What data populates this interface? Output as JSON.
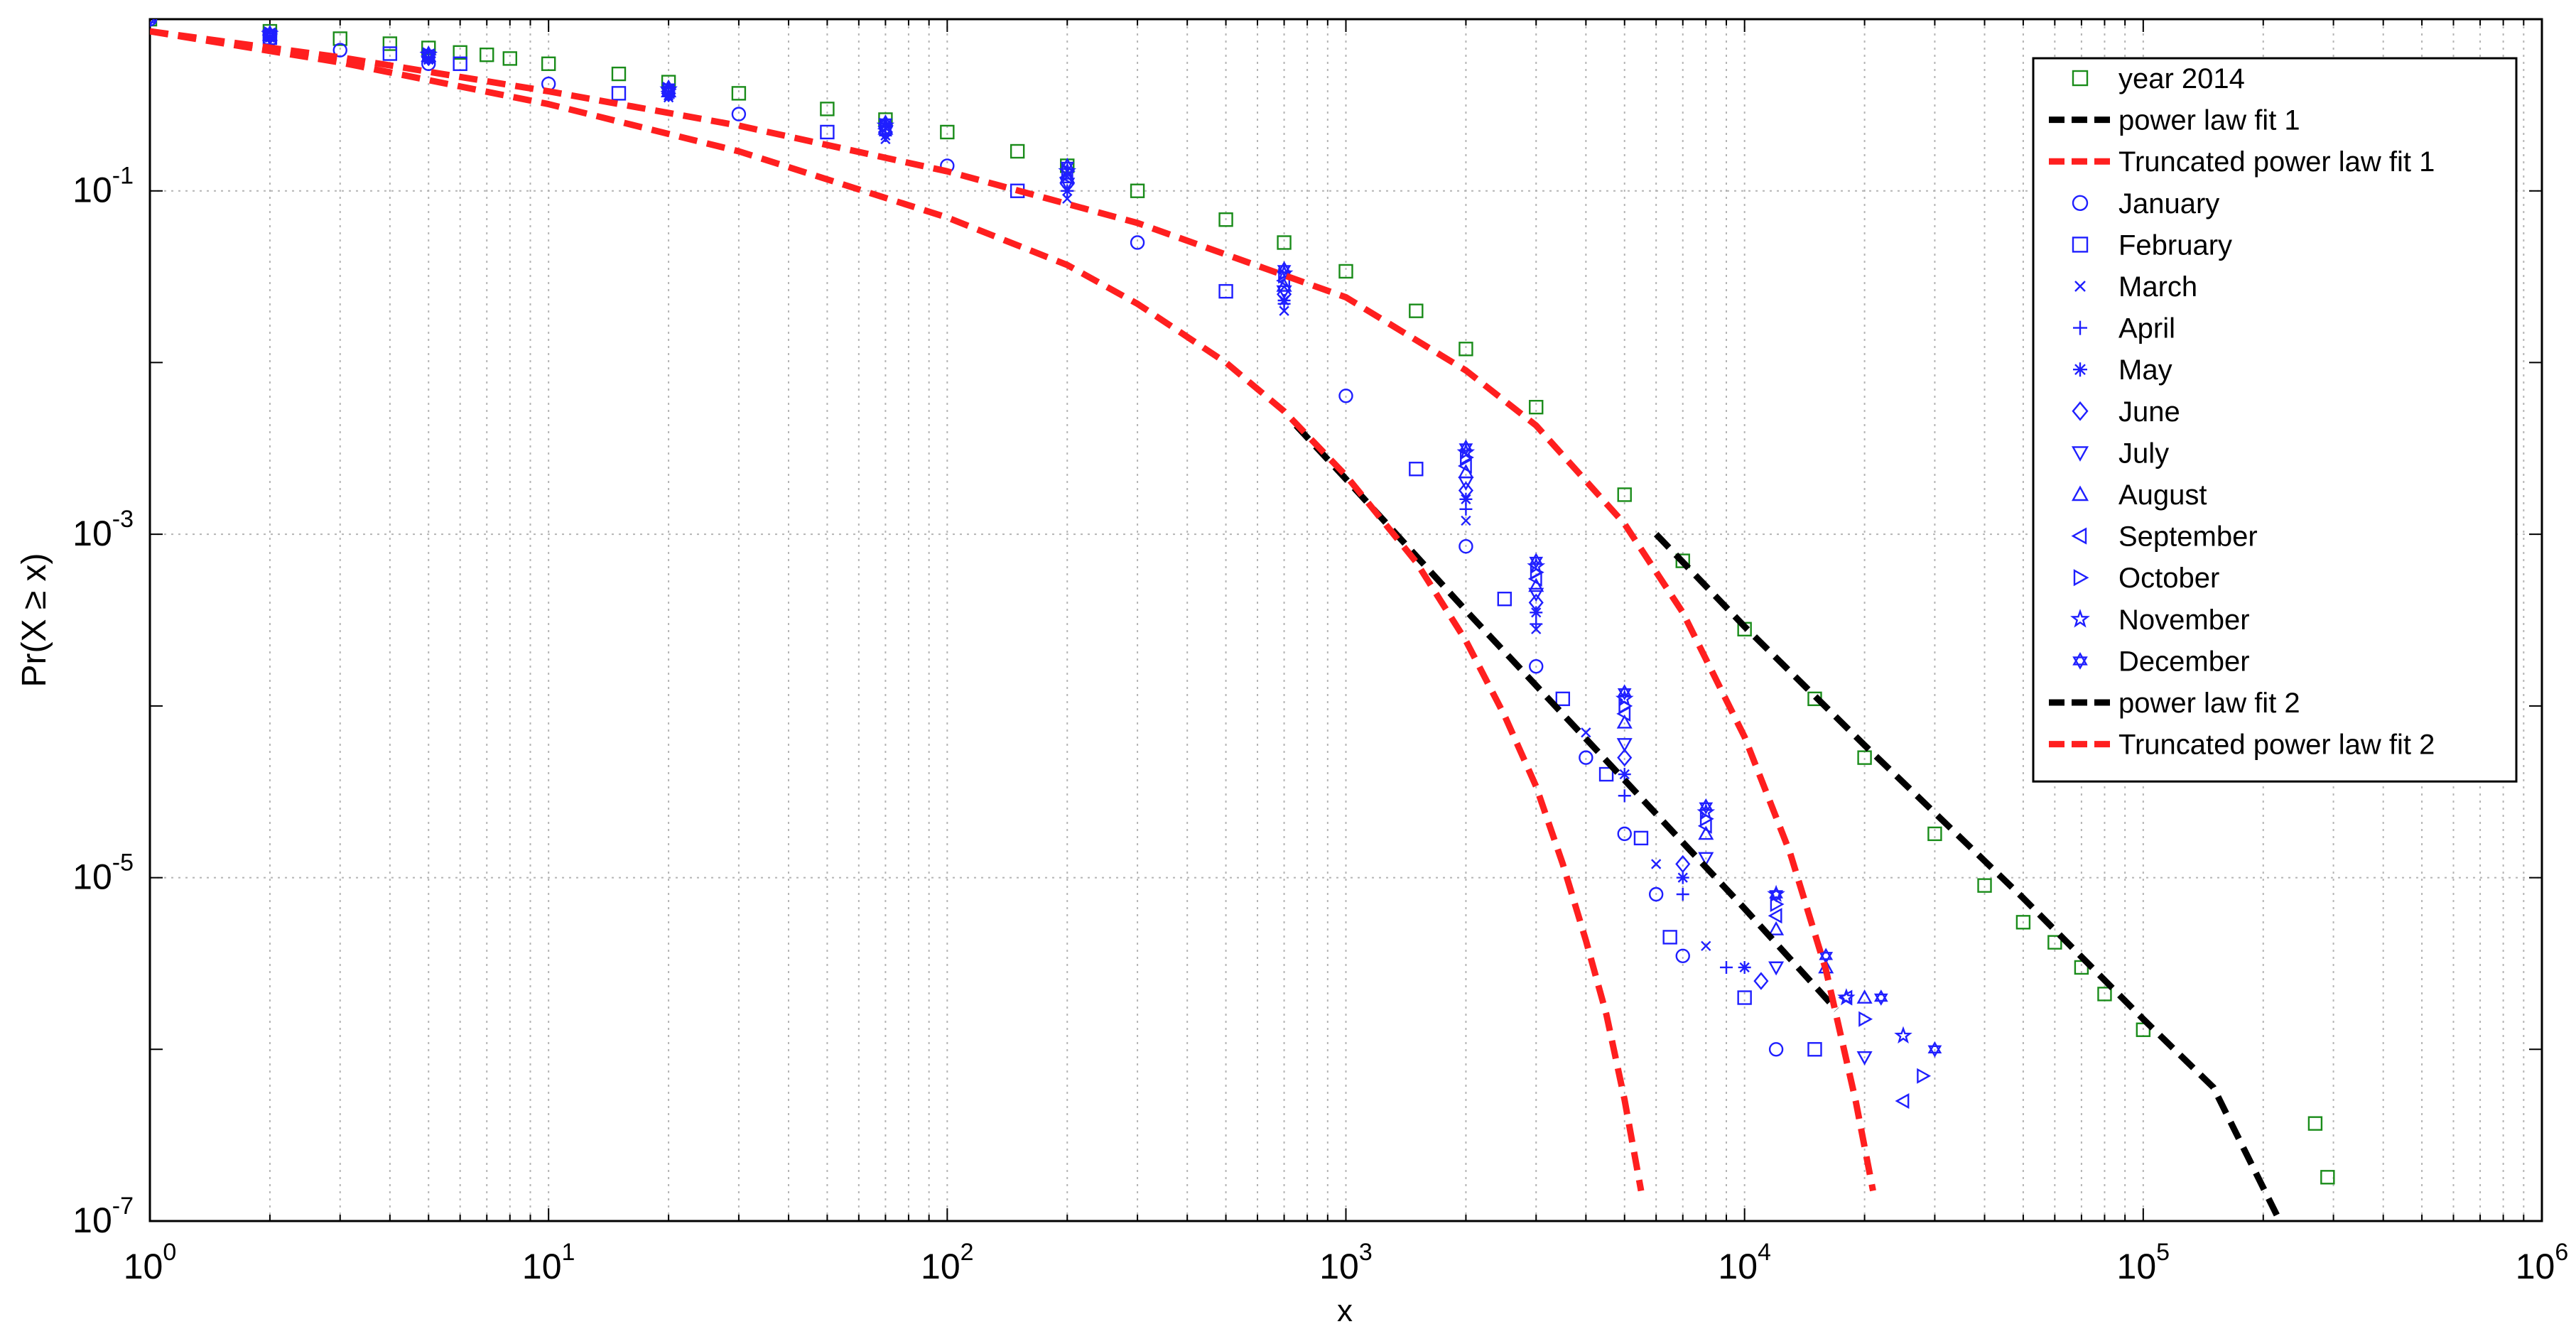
{
  "chart_data": {
    "type": "scatter",
    "title": "",
    "xlabel": "x",
    "ylabel": "Pr(X ≥ x)",
    "xscale": "log",
    "yscale": "log",
    "xlim": [
      1,
      1000000
    ],
    "ylim": [
      1e-07,
      1
    ],
    "x_ticks": [
      {
        "value": 1,
        "base": "10",
        "exp": "0"
      },
      {
        "value": 10,
        "base": "10",
        "exp": "1"
      },
      {
        "value": 100,
        "base": "10",
        "exp": "2"
      },
      {
        "value": 1000,
        "base": "10",
        "exp": "3"
      },
      {
        "value": 10000,
        "base": "10",
        "exp": "4"
      },
      {
        "value": 100000,
        "base": "10",
        "exp": "5"
      },
      {
        "value": 1000000,
        "base": "10",
        "exp": "6"
      }
    ],
    "y_ticks": [
      {
        "value": 0.1,
        "base": "10",
        "exp": "-1"
      },
      {
        "value": 0.001,
        "base": "10",
        "exp": "-3"
      },
      {
        "value": 1e-05,
        "base": "10",
        "exp": "-5"
      },
      {
        "value": 1e-07,
        "base": "10",
        "exp": "-7"
      }
    ],
    "grid": true,
    "legend_position": "top-right",
    "colors": {
      "year": "#1a8c1a",
      "months": "#1f1fff",
      "power_fit": "#000000",
      "truncated_fit": "#ff1f1f",
      "grid": "#b4b4b4",
      "axis": "#000000"
    },
    "series": [
      {
        "name": "year 2014",
        "kind": "scatter",
        "marker": "square",
        "color": "#1a8c1a",
        "x": [
          1,
          2,
          3,
          4,
          5,
          6,
          7,
          8,
          10,
          15,
          20,
          30,
          50,
          70,
          100,
          150,
          200,
          300,
          500,
          700,
          1000,
          1500,
          2000,
          3000,
          5000,
          7000,
          10000,
          15000,
          20000,
          30000,
          40000,
          50000,
          60000,
          70000,
          80000,
          100000,
          270000,
          290000
        ],
        "y": [
          1,
          0.85,
          0.77,
          0.72,
          0.68,
          0.64,
          0.62,
          0.59,
          0.55,
          0.48,
          0.43,
          0.37,
          0.3,
          0.26,
          0.22,
          0.17,
          0.14,
          0.1,
          0.068,
          0.05,
          0.034,
          0.02,
          0.012,
          0.0055,
          0.0017,
          0.0007,
          0.00028,
          0.00011,
          5e-05,
          1.8e-05,
          9e-06,
          5.5e-06,
          4.2e-06,
          3e-06,
          2.1e-06,
          1.3e-06,
          3.7e-07,
          1.8e-07
        ]
      },
      {
        "name": "power law fit 1",
        "kind": "line",
        "dash": true,
        "color": "#000000",
        "x": [
          750,
          1000,
          2000,
          5000,
          10000,
          17000
        ],
        "y": [
          0.0043,
          0.0021,
          0.00036,
          3.7e-05,
          6.6e-06,
          1.7e-06
        ]
      },
      {
        "name": "Truncated power law fit 1",
        "kind": "line",
        "dash": true,
        "color": "#ff1f1f",
        "x": [
          1,
          3,
          10,
          30,
          100,
          200,
          300,
          500,
          700,
          1000,
          1500,
          2000,
          2500,
          3000,
          3500,
          4000,
          4500,
          5000,
          5500
        ],
        "y": [
          0.85,
          0.56,
          0.32,
          0.17,
          0.07,
          0.037,
          0.022,
          0.01,
          0.0052,
          0.0022,
          0.00069,
          0.00024,
          8.8e-05,
          3.4e-05,
          1.2e-05,
          4.3e-06,
          1.6e-06,
          5.1e-07,
          1.5e-07
        ]
      },
      {
        "name": "January",
        "kind": "scatter",
        "marker": "circle",
        "color": "#1f1fff",
        "x": [
          1,
          2,
          3,
          5,
          10,
          30,
          100,
          300,
          1000,
          2000,
          3000,
          4000,
          5000,
          6000,
          7000,
          12000
        ],
        "y": [
          1,
          0.76,
          0.66,
          0.55,
          0.42,
          0.28,
          0.14,
          0.05,
          0.0064,
          0.00085,
          0.00017,
          5e-05,
          1.8e-05,
          8e-06,
          3.5e-06,
          1e-06
        ]
      },
      {
        "name": "February",
        "kind": "scatter",
        "marker": "square",
        "color": "#1f1fff",
        "x": [
          2,
          4,
          6,
          15,
          50,
          150,
          500,
          1500,
          2500,
          3500,
          4500,
          5500,
          6500,
          10000,
          15000
        ],
        "y": [
          0.78,
          0.63,
          0.55,
          0.37,
          0.22,
          0.1,
          0.026,
          0.0024,
          0.00042,
          0.00011,
          4e-05,
          1.7e-05,
          4.5e-06,
          2e-06,
          1e-06
        ]
      },
      {
        "name": "March",
        "kind": "scatter",
        "marker": "x",
        "color": "#1f1fff",
        "x": [
          2,
          5,
          20,
          70,
          200,
          700,
          2000,
          3000,
          4000,
          6000,
          8000
        ],
        "y": [
          0.78,
          0.58,
          0.35,
          0.2,
          0.09,
          0.02,
          0.0012,
          0.00028,
          7e-05,
          1.2e-05,
          4e-06
        ]
      },
      {
        "name": "April",
        "kind": "scatter",
        "marker": "plus",
        "color": "#1f1fff",
        "x": [
          2,
          5,
          20,
          70,
          200,
          700,
          2000,
          3000,
          5000,
          7000,
          9000
        ],
        "y": [
          0.79,
          0.59,
          0.36,
          0.21,
          0.1,
          0.022,
          0.0014,
          0.0003,
          3e-05,
          8e-06,
          3e-06
        ]
      },
      {
        "name": "May",
        "kind": "scatter",
        "marker": "asterisk",
        "color": "#1f1fff",
        "x": [
          2,
          5,
          20,
          70,
          200,
          700,
          2000,
          3000,
          5000,
          7000,
          10000
        ],
        "y": [
          0.79,
          0.59,
          0.36,
          0.21,
          0.1,
          0.023,
          0.0016,
          0.00035,
          4e-05,
          1e-05,
          3e-06
        ]
      },
      {
        "name": "June",
        "kind": "scatter",
        "marker": "diamond",
        "color": "#1f1fff",
        "x": [
          2,
          5,
          20,
          70,
          200,
          700,
          2000,
          3000,
          5000,
          7000,
          11000
        ],
        "y": [
          0.8,
          0.6,
          0.37,
          0.22,
          0.11,
          0.025,
          0.0018,
          0.0004,
          5e-05,
          1.2e-05,
          2.5e-06
        ]
      },
      {
        "name": "July",
        "kind": "scatter",
        "marker": "triangle-down",
        "color": "#1f1fff",
        "x": [
          2,
          5,
          20,
          70,
          200,
          700,
          2000,
          3000,
          5000,
          8000,
          12000,
          20000
        ],
        "y": [
          0.8,
          0.6,
          0.37,
          0.22,
          0.11,
          0.026,
          0.002,
          0.00045,
          6e-05,
          1.3e-05,
          3e-06,
          9e-07
        ]
      },
      {
        "name": "August",
        "kind": "scatter",
        "marker": "triangle-up",
        "color": "#1f1fff",
        "x": [
          2,
          5,
          20,
          70,
          200,
          700,
          2000,
          3000,
          5000,
          8000,
          12000,
          16000,
          20000
        ],
        "y": [
          0.81,
          0.61,
          0.38,
          0.23,
          0.12,
          0.028,
          0.0023,
          0.0005,
          8e-05,
          1.8e-05,
          5e-06,
          3e-06,
          2e-06
        ]
      },
      {
        "name": "September",
        "kind": "scatter",
        "marker": "triangle-left",
        "color": "#1f1fff",
        "x": [
          2,
          5,
          20,
          70,
          200,
          700,
          2000,
          3000,
          5000,
          8000,
          12000,
          18000,
          25000
        ],
        "y": [
          0.81,
          0.61,
          0.38,
          0.23,
          0.12,
          0.03,
          0.0025,
          0.00055,
          9e-05,
          2e-05,
          6e-06,
          2e-06,
          5e-07
        ]
      },
      {
        "name": "October",
        "kind": "scatter",
        "marker": "triangle-right",
        "color": "#1f1fff",
        "x": [
          2,
          5,
          20,
          70,
          200,
          700,
          2000,
          3000,
          5000,
          8000,
          12000,
          20000,
          28000
        ],
        "y": [
          0.82,
          0.62,
          0.39,
          0.24,
          0.13,
          0.032,
          0.0028,
          0.0006,
          0.0001,
          2.2e-05,
          7e-06,
          1.5e-06,
          7e-07
        ]
      },
      {
        "name": "November",
        "kind": "scatter",
        "marker": "pentagram",
        "color": "#1f1fff",
        "x": [
          2,
          5,
          20,
          70,
          200,
          700,
          2000,
          3000,
          5000,
          8000,
          12000,
          18000,
          25000
        ],
        "y": [
          0.82,
          0.62,
          0.39,
          0.24,
          0.13,
          0.033,
          0.003,
          0.00065,
          0.00011,
          2.4e-05,
          8e-06,
          2e-06,
          1.2e-06
        ]
      },
      {
        "name": "December",
        "kind": "scatter",
        "marker": "hexagram",
        "color": "#1f1fff",
        "x": [
          1,
          2,
          5,
          20,
          70,
          200,
          700,
          2000,
          3000,
          5000,
          8000,
          12000,
          16000,
          22000,
          30000
        ],
        "y": [
          1,
          0.83,
          0.63,
          0.4,
          0.25,
          0.14,
          0.035,
          0.0032,
          0.0007,
          0.00012,
          2.6e-05,
          8e-06,
          3.5e-06,
          2e-06,
          1e-06
        ]
      },
      {
        "name": "power law fit 2",
        "kind": "line",
        "dash": true,
        "color": "#000000",
        "x": [
          6000,
          10000,
          20000,
          50000,
          100000,
          150000,
          220000
        ],
        "y": [
          0.001,
          0.00029,
          5.9e-05,
          7.6e-06,
          1.5e-06,
          6e-07,
          1e-07
        ]
      },
      {
        "name": "Truncated power law fit 2",
        "kind": "line",
        "dash": true,
        "color": "#ff1f1f",
        "x": [
          1,
          3,
          10,
          30,
          100,
          300,
          1000,
          2000,
          3000,
          5000,
          7000,
          10000,
          13000,
          16000,
          19000,
          21000
        ],
        "y": [
          0.85,
          0.6,
          0.38,
          0.24,
          0.13,
          0.065,
          0.024,
          0.009,
          0.0043,
          0.00115,
          0.00035,
          6.6e-05,
          1.4e-05,
          2.9e-06,
          5e-07,
          1.5e-07
        ]
      }
    ]
  }
}
